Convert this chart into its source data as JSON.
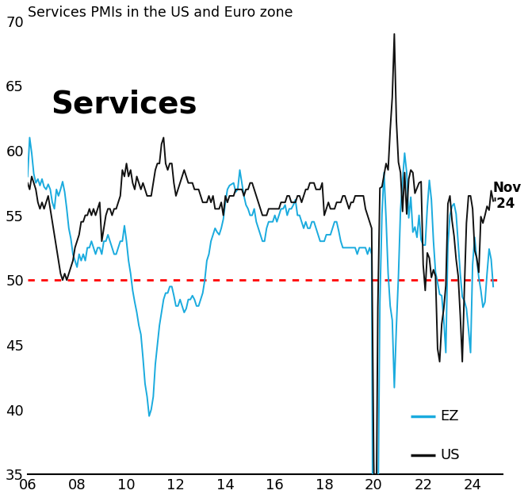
{
  "title": "Services PMIs in the US and Euro zone",
  "inner_label": "Services",
  "annotation": "Nov\n'24",
  "ez_color": "#1AABDE",
  "us_color": "#111111",
  "ref_line_color": "#FF0000",
  "ref_line_value": 50,
  "ylim": [
    35,
    70
  ],
  "yticks": [
    35,
    40,
    45,
    50,
    55,
    60,
    65,
    70
  ],
  "xtick_labels": [
    "06",
    "08",
    "10",
    "12",
    "14",
    "16",
    "18",
    "20",
    "22",
    "24"
  ],
  "xtick_positions": [
    2006,
    2008,
    2010,
    2012,
    2014,
    2016,
    2018,
    2020,
    2022,
    2024
  ],
  "us_data": [
    57.5,
    57.0,
    58.0,
    57.5,
    57.0,
    56.0,
    55.5,
    56.0,
    55.5,
    56.0,
    56.5,
    55.5,
    54.5,
    53.5,
    52.5,
    51.5,
    50.5,
    50.0,
    50.5,
    50.0,
    50.5,
    51.0,
    51.5,
    52.5,
    53.0,
    53.5,
    54.5,
    54.5,
    55.0,
    55.0,
    55.5,
    55.0,
    55.5,
    55.0,
    55.5,
    56.0,
    53.0,
    54.0,
    55.0,
    55.5,
    55.5,
    55.0,
    55.5,
    55.5,
    56.0,
    56.5,
    58.5,
    58.0,
    59.0,
    58.0,
    58.5,
    57.5,
    57.0,
    58.0,
    57.5,
    57.0,
    57.5,
    57.0,
    56.5,
    56.5,
    56.5,
    57.5,
    58.5,
    59.0,
    59.0,
    60.5,
    61.0,
    59.0,
    58.5,
    59.0,
    59.0,
    57.5,
    56.5,
    57.0,
    57.5,
    58.0,
    58.5,
    58.0,
    57.5,
    57.5,
    57.5,
    57.0,
    57.0,
    57.0,
    56.5,
    56.0,
    56.0,
    56.0,
    56.5,
    56.0,
    56.5,
    55.5,
    55.5,
    55.5,
    56.0,
    55.0,
    56.5,
    56.0,
    56.5,
    56.5,
    56.5,
    57.0,
    57.0,
    57.0,
    57.0,
    56.5,
    57.0,
    57.0,
    57.5,
    57.5,
    57.0,
    56.5,
    56.0,
    55.5,
    55.0,
    55.0,
    55.0,
    55.5,
    55.5,
    55.5,
    55.5,
    55.5,
    55.5,
    56.0,
    56.0,
    56.0,
    56.5,
    56.5,
    56.0,
    56.0,
    56.0,
    56.5,
    56.5,
    56.0,
    56.5,
    57.0,
    57.0,
    57.5,
    57.5,
    57.5,
    57.0,
    57.0,
    57.0,
    57.5,
    55.0,
    55.5,
    56.0,
    55.5,
    55.5,
    55.5,
    56.0,
    56.0,
    56.0,
    56.5,
    56.5,
    56.0,
    55.5,
    56.0,
    56.0,
    56.5,
    56.5,
    56.5,
    56.5,
    56.5,
    55.5,
    55.0,
    54.5,
    54.0,
    36.0,
    26.5,
    47.9,
    57.1,
    57.2,
    58.1,
    59.0,
    58.5,
    61.6,
    64.1,
    69.0,
    62.3,
    59.1,
    58.3,
    55.3,
    58.3,
    55.1,
    57.8,
    58.5,
    58.3,
    56.7,
    57.1,
    57.5,
    57.6,
    51.2,
    49.2,
    52.1,
    51.7,
    50.2,
    50.8,
    50.3,
    44.7,
    43.7,
    46.6,
    47.8,
    49.6,
    55.9,
    56.5,
    54.6,
    53.4,
    51.6,
    50.3,
    47.3,
    43.7,
    49.3,
    54.4,
    56.5,
    56.5,
    55.5,
    52.3,
    51.7,
    50.6,
    54.9,
    54.4,
    55.0,
    55.7,
    55.4,
    56.9,
    56.1
  ],
  "ez_data": [
    58.0,
    61.0,
    59.8,
    58.2,
    57.5,
    57.8,
    57.3,
    57.8,
    57.2,
    57.0,
    57.4,
    57.0,
    56.0,
    55.5,
    57.0,
    56.5,
    57.0,
    57.6,
    56.8,
    55.5,
    54.0,
    53.2,
    52.0,
    51.5,
    51.0,
    52.0,
    51.5,
    52.0,
    51.5,
    52.5,
    52.5,
    53.0,
    52.5,
    52.0,
    52.5,
    52.5,
    52.0,
    53.0,
    53.0,
    53.5,
    53.0,
    52.5,
    52.0,
    52.0,
    52.5,
    53.0,
    53.0,
    54.2,
    53.0,
    51.5,
    50.5,
    49.2,
    48.3,
    47.5,
    46.5,
    45.8,
    44.0,
    42.0,
    41.0,
    39.5,
    40.0,
    41.0,
    43.5,
    45.0,
    46.5,
    47.5,
    48.5,
    49.0,
    49.0,
    49.5,
    49.5,
    48.8,
    48.0,
    48.0,
    48.5,
    48.0,
    47.5,
    47.8,
    48.5,
    48.5,
    48.8,
    48.5,
    48.0,
    48.0,
    48.5,
    49.0,
    50.0,
    51.5,
    52.0,
    53.0,
    53.5,
    54.0,
    53.7,
    53.5,
    54.0,
    54.7,
    56.0,
    57.0,
    57.3,
    57.4,
    57.5,
    56.8,
    57.0,
    58.5,
    57.5,
    56.5,
    55.8,
    55.5,
    55.0,
    55.0,
    55.5,
    54.5,
    54.0,
    53.5,
    53.0,
    53.0,
    54.0,
    54.5,
    54.5,
    54.5,
    55.0,
    54.5,
    55.0,
    55.5,
    55.5,
    55.8,
    55.0,
    55.5,
    55.5,
    55.8,
    56.2,
    55.0,
    55.0,
    54.5,
    54.0,
    54.5,
    54.0,
    54.0,
    54.5,
    54.5,
    54.0,
    53.5,
    53.0,
    53.0,
    53.0,
    53.5,
    53.5,
    53.5,
    54.0,
    54.5,
    54.5,
    53.8,
    53.0,
    52.5,
    52.5,
    52.5,
    52.5,
    52.5,
    52.5,
    52.5,
    52.0,
    52.5,
    52.5,
    52.5,
    52.5,
    52.0,
    52.5,
    52.0,
    12.0,
    11.5,
    30.5,
    48.3,
    55.1,
    58.3,
    54.7,
    50.5,
    48.0,
    46.9,
    41.7,
    46.4,
    50.3,
    55.4,
    57.7,
    59.8,
    58.3,
    54.8,
    56.4,
    53.7,
    54.1,
    53.3,
    55.0,
    53.1,
    52.7,
    52.7,
    55.6,
    57.7,
    56.2,
    53.0,
    50.6,
    49.8,
    48.9,
    48.8,
    46.9,
    44.4,
    52.7,
    55.0,
    55.7,
    55.9,
    55.1,
    52.8,
    50.5,
    48.7,
    48.4,
    47.8,
    46.2,
    44.4,
    51.2,
    53.3,
    51.6,
    50.2,
    49.2,
    47.9,
    48.3,
    50.5,
    52.4,
    51.6,
    49.5
  ],
  "start_year": 2006,
  "months_per_year": 12
}
